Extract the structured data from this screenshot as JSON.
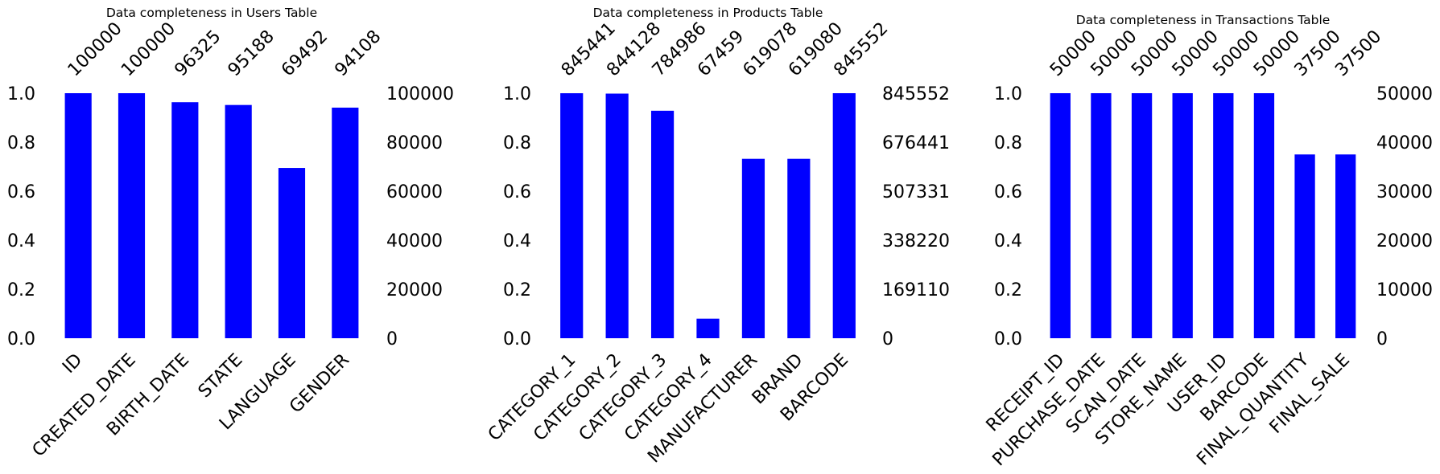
{
  "chart_data": [
    {
      "type": "bar",
      "title": "Data completeness in Users Table",
      "categories": [
        "ID",
        "CREATED_DATE",
        "BIRTH_DATE",
        "STATE",
        "LANGUAGE",
        "GENDER"
      ],
      "counts": [
        100000,
        100000,
        96325,
        95188,
        69492,
        94108
      ],
      "count_labels": [
        "100000",
        "100000",
        "96325",
        "95188",
        "69492",
        "94108"
      ],
      "values": [
        1.0,
        1.0,
        0.96325,
        0.95188,
        0.69492,
        0.94108
      ],
      "ylim": [
        0,
        1
      ],
      "left_ticks": [
        "0.0",
        "0.2",
        "0.4",
        "0.6",
        "0.8",
        "1.0"
      ],
      "right_ticks": [
        "0",
        "20000",
        "40000",
        "60000",
        "80000",
        "100000"
      ],
      "bar_color": "#0000ff"
    },
    {
      "type": "bar",
      "title": "Data completeness in Products Table",
      "categories": [
        "CATEGORY_1",
        "CATEGORY_2",
        "CATEGORY_3",
        "CATEGORY_4",
        "MANUFACTURER",
        "BRAND",
        "BARCODE"
      ],
      "counts": [
        845441,
        844128,
        784986,
        67459,
        619078,
        619080,
        845552
      ],
      "count_labels": [
        "845441",
        "844128",
        "784986",
        "67459",
        "619078",
        "619080",
        "845552"
      ],
      "values": [
        0.99987,
        0.99831,
        0.92836,
        0.07978,
        0.73216,
        0.73216,
        1.0
      ],
      "ylim": [
        0,
        1
      ],
      "left_ticks": [
        "0.0",
        "0.2",
        "0.4",
        "0.6",
        "0.8",
        "1.0"
      ],
      "right_ticks": [
        "0",
        "169110",
        "338220",
        "507331",
        "676441",
        "845552"
      ],
      "bar_color": "#0000ff"
    },
    {
      "type": "bar",
      "title": "Data completeness in Transactions Table",
      "categories": [
        "RECEIPT_ID",
        "PURCHASE_DATE",
        "SCAN_DATE",
        "STORE_NAME",
        "USER_ID",
        "BARCODE",
        "FINAL_QUANTITY",
        "FINAL_SALE"
      ],
      "counts": [
        50000,
        50000,
        50000,
        50000,
        50000,
        50000,
        37500,
        37500
      ],
      "count_labels": [
        "50000",
        "50000",
        "50000",
        "50000",
        "50000",
        "50000",
        "37500",
        "37500"
      ],
      "values": [
        1.0,
        1.0,
        1.0,
        1.0,
        1.0,
        1.0,
        0.75,
        0.75
      ],
      "ylim": [
        0,
        1
      ],
      "left_ticks": [
        "0.0",
        "0.2",
        "0.4",
        "0.6",
        "0.8",
        "1.0"
      ],
      "right_ticks": [
        "0",
        "10000",
        "20000",
        "30000",
        "40000",
        "50000"
      ],
      "bar_color": "#0000ff"
    }
  ]
}
